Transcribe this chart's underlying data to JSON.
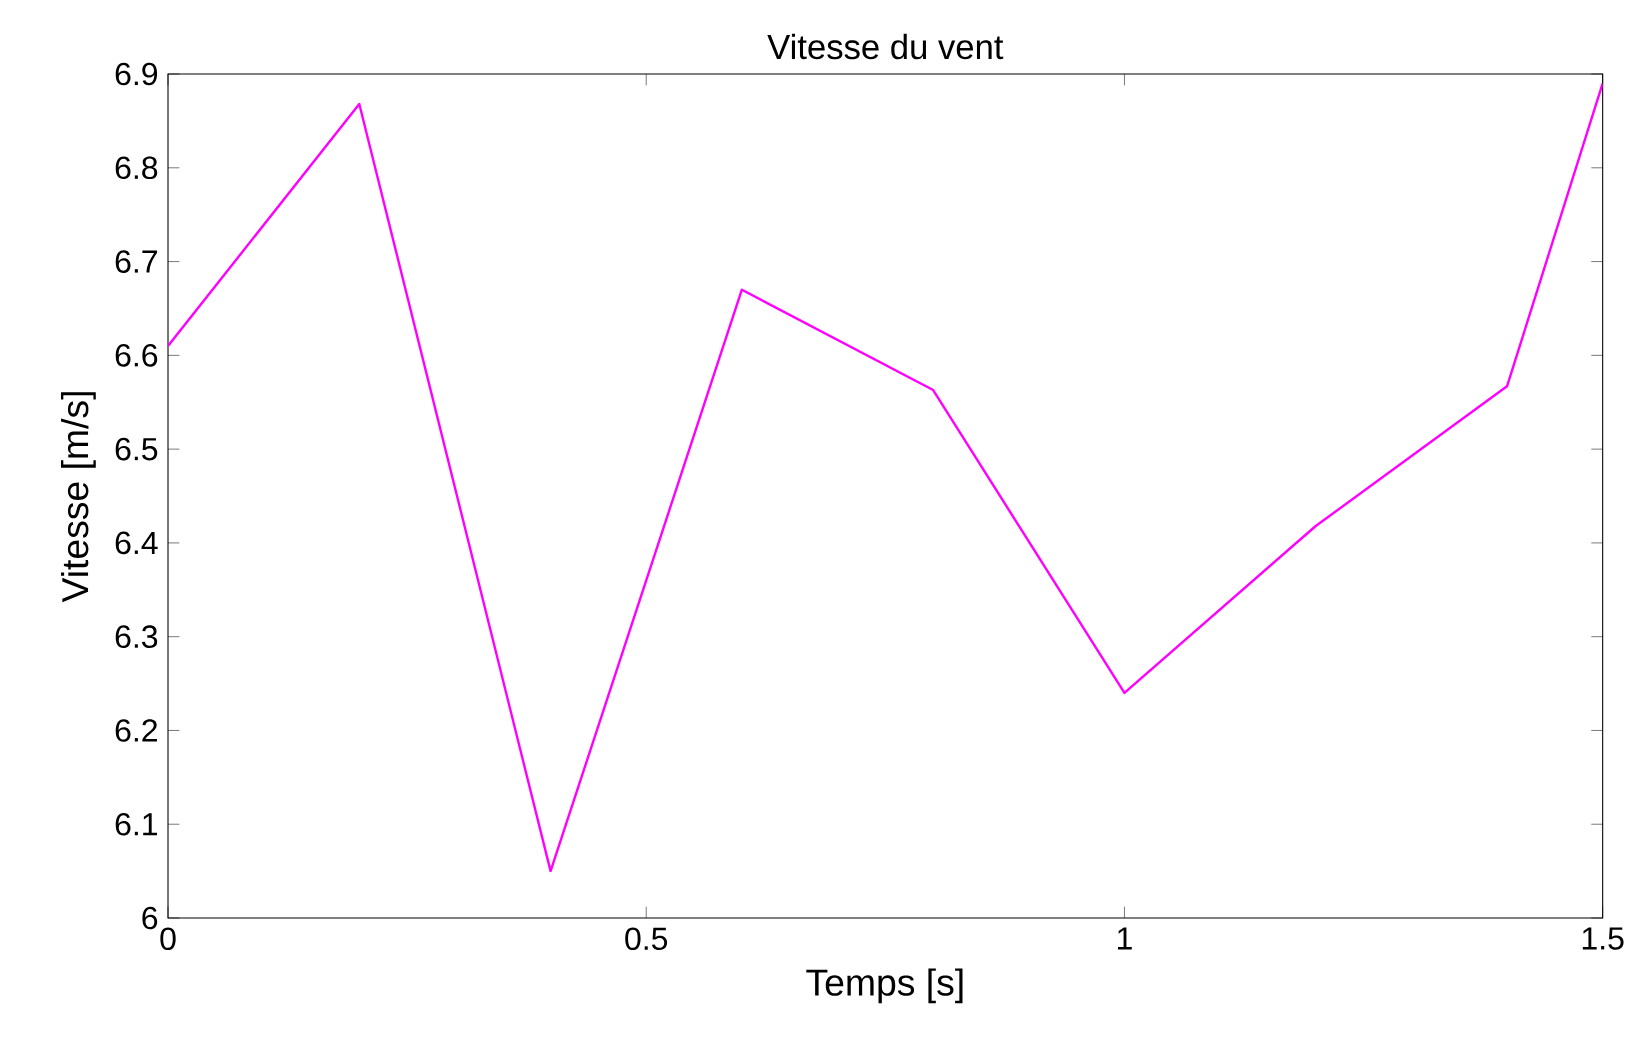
{
  "chart_data": {
    "type": "line",
    "title": "Vitesse du vent",
    "xlabel": "Temps [s]",
    "ylabel": "Vitesse [m/s]",
    "x": [
      0,
      0.2,
      0.4,
      0.6,
      0.8,
      1.0,
      1.2,
      1.4,
      1.5
    ],
    "series": [
      {
        "color": "#ff00ff",
        "values": [
          6.61,
          6.868,
          6.05,
          6.67,
          6.563,
          6.24,
          6.418,
          6.567,
          6.89
        ]
      }
    ],
    "xlim": [
      0,
      1.5
    ],
    "ylim": [
      6,
      6.9
    ],
    "xticks": [
      0,
      {
        "value": 0.5,
        "label": "0.5"
      },
      1,
      {
        "value": 1.5,
        "label": "1.5"
      }
    ],
    "yticks": [
      6,
      {
        "value": 6.1,
        "label": "6.1"
      },
      {
        "value": 6.2,
        "label": "6.2"
      },
      {
        "value": 6.3,
        "label": "6.3"
      },
      {
        "value": 6.4,
        "label": "6.4"
      },
      {
        "value": 6.5,
        "label": "6.5"
      },
      {
        "value": 6.6,
        "label": "6.6"
      },
      {
        "value": 6.7,
        "label": "6.7"
      },
      {
        "value": 6.8,
        "label": "6.8"
      },
      {
        "value": 6.9,
        "label": "6.9"
      }
    ],
    "grid": false,
    "marker": "none",
    "line_style": "solid"
  }
}
